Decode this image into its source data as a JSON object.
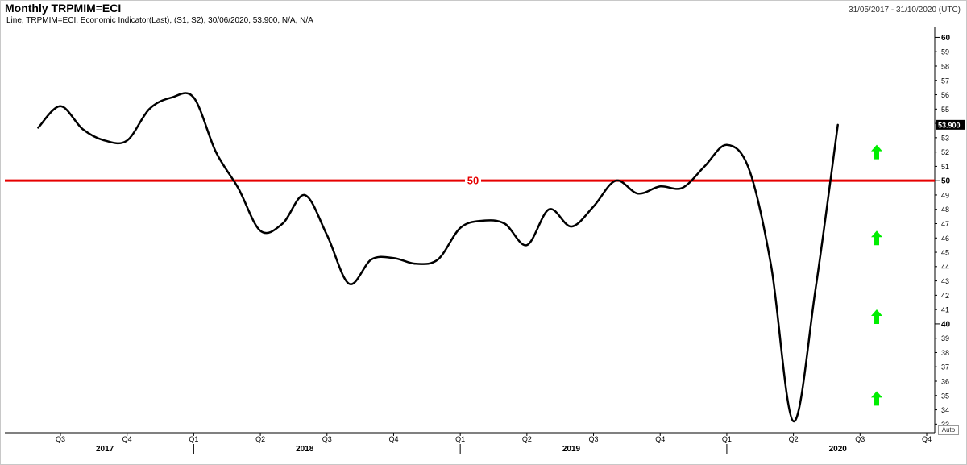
{
  "header": {
    "title": "Monthly TRPMIM=ECI",
    "date_range": "31/05/2017 - 31/10/2020 (UTC)",
    "description": "Line, TRPMIM=ECI, Economic Indicator(Last), (S1, S2), 30/06/2020, 53.900, N/A, N/A"
  },
  "auto_label": "Auto",
  "chart_data": {
    "type": "line",
    "title": "Monthly TRPMIM=ECI",
    "x": [
      "2017-06",
      "2017-07",
      "2017-08",
      "2017-09",
      "2017-10",
      "2017-11",
      "2017-12",
      "2018-01",
      "2018-02",
      "2018-03",
      "2018-04",
      "2018-05",
      "2018-06",
      "2018-07",
      "2018-08",
      "2018-09",
      "2018-10",
      "2018-11",
      "2018-12",
      "2019-01",
      "2019-02",
      "2019-03",
      "2019-04",
      "2019-05",
      "2019-06",
      "2019-07",
      "2019-08",
      "2019-09",
      "2019-10",
      "2019-11",
      "2019-12",
      "2020-01",
      "2020-02",
      "2020-03",
      "2020-04",
      "2020-05",
      "2020-06"
    ],
    "series": [
      {
        "values": [
          53.7,
          55.2,
          53.6,
          52.8,
          52.8,
          55.0,
          55.8,
          55.8,
          52.0,
          49.5,
          46.5,
          47.0,
          49.0,
          46.2,
          42.8,
          44.5,
          44.6,
          44.2,
          44.5,
          46.7,
          47.2,
          47.0,
          45.5,
          48.0,
          46.8,
          48.2,
          50.0,
          49.1,
          49.6,
          49.5,
          51.0,
          52.5,
          50.8,
          44.0,
          33.2,
          42.5,
          53.9
        ]
      }
    ],
    "reference_line": {
      "value": 50,
      "label": "50",
      "color": "#e60000"
    },
    "last_value_label": "53.900",
    "ylim": [
      32.4,
      60.7
    ],
    "y_ticks": [
      33,
      34,
      35,
      36,
      37,
      38,
      39,
      40,
      41,
      42,
      43,
      44,
      45,
      46,
      47,
      48,
      49,
      50,
      51,
      52,
      53,
      54,
      55,
      56,
      57,
      58,
      59,
      60
    ],
    "y_major_ticks": [
      40,
      50,
      60
    ],
    "x_quarter_labels": [
      {
        "label": "Q3",
        "month": "2017-07"
      },
      {
        "label": "Q4",
        "month": "2017-10"
      },
      {
        "label": "Q1",
        "month": "2018-01"
      },
      {
        "label": "Q2",
        "month": "2018-04"
      },
      {
        "label": "Q3",
        "month": "2018-07"
      },
      {
        "label": "Q4",
        "month": "2018-10"
      },
      {
        "label": "Q1",
        "month": "2019-01"
      },
      {
        "label": "Q2",
        "month": "2019-04"
      },
      {
        "label": "Q3",
        "month": "2019-07"
      },
      {
        "label": "Q4",
        "month": "2019-10"
      },
      {
        "label": "Q1",
        "month": "2020-01"
      },
      {
        "label": "Q2",
        "month": "2020-04"
      },
      {
        "label": "Q3",
        "month": "2020-07"
      },
      {
        "label": "Q4",
        "month": "2020-10"
      }
    ],
    "x_year_labels": [
      {
        "label": "2017",
        "month": "2017-09"
      },
      {
        "label": "2018",
        "month": "2018-06"
      },
      {
        "label": "2019",
        "month": "2019-06"
      },
      {
        "label": "2020",
        "month": "2020-06"
      }
    ],
    "year_separators": [
      "2018-01",
      "2019-01",
      "2020-01"
    ],
    "signal_arrows": [
      {
        "value": 52,
        "color": "#00ee00",
        "direction": "up"
      },
      {
        "value": 46,
        "color": "#00ee00",
        "direction": "up"
      },
      {
        "value": 40.5,
        "color": "#00ee00",
        "direction": "up"
      },
      {
        "value": 34.8,
        "color": "#00ee00",
        "direction": "up"
      }
    ],
    "series_color": "#000000",
    "grid": false
  }
}
